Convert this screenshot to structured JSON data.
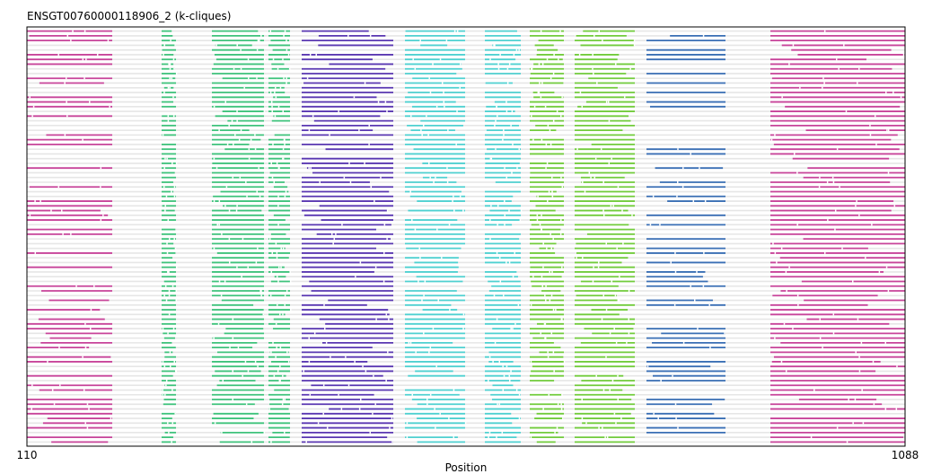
{
  "chart_data": {
    "type": "alignment-blocks",
    "title": "ENSGT00760000118906_2 (k-cliques)",
    "xlabel": "Position",
    "ylabel": "",
    "xlim": [
      110,
      1088
    ],
    "x_ticks": [
      "110",
      "1088"
    ],
    "n_sequences": 88,
    "background_color": "#e6e6e6",
    "gap_color": "#ffffff",
    "grid": false,
    "legend": "none",
    "blocks": [
      {
        "name": "magenta-left",
        "color": "#c8449a",
        "start": 110,
        "end": 205,
        "coverage": 0.62
      },
      {
        "name": "green-1",
        "color": "#3fc37c",
        "start": 260,
        "end": 276,
        "coverage": 0.95
      },
      {
        "name": "green-2",
        "color": "#3fc37c",
        "start": 316,
        "end": 374,
        "coverage": 0.9
      },
      {
        "name": "green-3",
        "color": "#3fc37c",
        "start": 379,
        "end": 403,
        "coverage": 0.9
      },
      {
        "name": "indigo",
        "color": "#5a38b2",
        "start": 416,
        "end": 518,
        "coverage": 0.96
      },
      {
        "name": "cyan-1",
        "color": "#4fd1d1",
        "start": 531,
        "end": 598,
        "coverage": 0.94
      },
      {
        "name": "cyan-2",
        "color": "#4fd1d1",
        "start": 620,
        "end": 660,
        "coverage": 0.92
      },
      {
        "name": "lime-1",
        "color": "#72cc3c",
        "start": 670,
        "end": 708,
        "coverage": 0.92
      },
      {
        "name": "lime-2",
        "color": "#72cc3c",
        "start": 720,
        "end": 787,
        "coverage": 0.92
      },
      {
        "name": "blue",
        "color": "#3a6fb5",
        "start": 800,
        "end": 888,
        "coverage": 0.55
      },
      {
        "name": "magenta-right",
        "color": "#c8449a",
        "start": 938,
        "end": 1088,
        "coverage": 0.95
      }
    ]
  }
}
